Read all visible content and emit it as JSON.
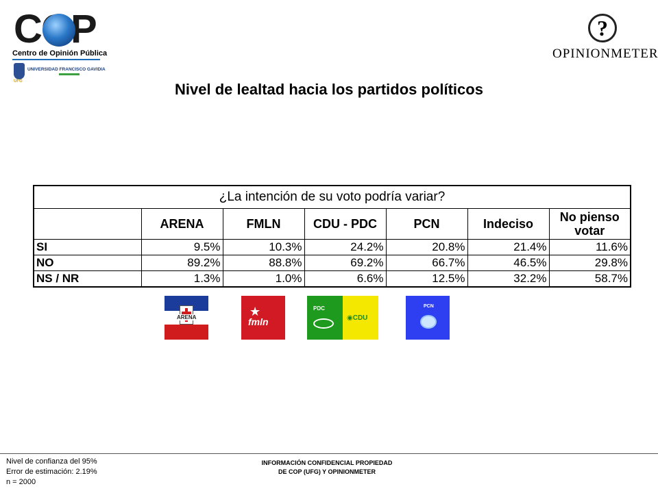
{
  "logos": {
    "cop": {
      "word": "COP",
      "subtitle": "Centro de Opinión Pública",
      "university": "UNIVERSIDAD FRANCISCO GAVIDIA",
      "ufg_tag": "UFG"
    },
    "opinionmeter": {
      "mark": "?",
      "word": "OPINIONMETER"
    }
  },
  "page": {
    "title": "Nivel de lealtad hacia los partidos políticos"
  },
  "table": {
    "question": "¿La intención de su voto podría variar?",
    "columns": [
      "ARENA",
      "FMLN",
      "CDU - PDC",
      "PCN",
      "Indeciso",
      "No pienso votar"
    ],
    "rows": [
      {
        "label": "SI",
        "values": [
          "9.5%",
          "10.3%",
          "24.2%",
          "20.8%",
          "21.4%",
          "11.6%"
        ]
      },
      {
        "label": "NO",
        "values": [
          "89.2%",
          "88.8%",
          "69.2%",
          "66.7%",
          "46.5%",
          "29.8%"
        ]
      },
      {
        "label": "NS / NR",
        "values": [
          "1.3%",
          "1.0%",
          "6.6%",
          "12.5%",
          "32.2%",
          "58.7%"
        ]
      }
    ]
  },
  "party_logos": [
    {
      "name": "ARENA",
      "label": "ARENA"
    },
    {
      "name": "FMLN",
      "label": "fmln"
    },
    {
      "name": "PDC",
      "label": "PDC"
    },
    {
      "name": "CDU",
      "label": "◉CDU"
    },
    {
      "name": "PCN",
      "label": "PCN"
    }
  ],
  "footer": {
    "left": [
      "Nivel de confianza del 95%",
      "Error de estimación: 2.19%",
      "n = 2000"
    ],
    "center": [
      "INFORMACIÓN CONFIDENCIAL PROPIEDAD",
      "DE COP (UFG) Y OPINIONMETER"
    ]
  },
  "colors": {
    "arena_blue": "#1c3c9c",
    "arena_red": "#d01c1c",
    "fmln_red": "#d21a24",
    "pdc_green": "#1e9a1e",
    "cdu_yellow": "#f4e800",
    "pcn_blue": "#2d3ff0"
  }
}
